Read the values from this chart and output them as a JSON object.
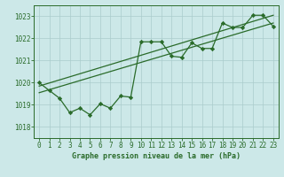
{
  "title": "Graphe pression niveau de la mer (hPa)",
  "bg_color": "#cce8e8",
  "grid_color": "#aacccc",
  "line_color": "#2a6b2a",
  "marker_color": "#2a6b2a",
  "xlim": [
    -0.5,
    23.5
  ],
  "ylim": [
    1017.5,
    1023.5
  ],
  "yticks": [
    1018,
    1019,
    1020,
    1021,
    1022,
    1023
  ],
  "xticks": [
    0,
    1,
    2,
    3,
    4,
    5,
    6,
    7,
    8,
    9,
    10,
    11,
    12,
    13,
    14,
    15,
    16,
    17,
    18,
    19,
    20,
    21,
    22,
    23
  ],
  "main_series_x": [
    0,
    1,
    2,
    3,
    4,
    5,
    6,
    7,
    8,
    9,
    10,
    11,
    12,
    13,
    14,
    15,
    16,
    17,
    18,
    19,
    20,
    21,
    22,
    23
  ],
  "main_series_y": [
    1020.0,
    1019.65,
    1019.3,
    1018.65,
    1018.85,
    1018.55,
    1019.05,
    1018.85,
    1019.4,
    1019.35,
    1021.85,
    1021.85,
    1021.85,
    1021.2,
    1021.15,
    1021.8,
    1021.55,
    1021.55,
    1022.7,
    1022.5,
    1022.5,
    1023.05,
    1023.05,
    1022.55
  ],
  "trend1_x": [
    0,
    23
  ],
  "trend1_y": [
    1019.55,
    1022.7
  ],
  "trend2_x": [
    0,
    23
  ],
  "trend2_y": [
    1019.85,
    1023.05
  ],
  "title_fontsize": 6.0,
  "tick_fontsize": 5.5,
  "figsize": [
    3.2,
    2.0
  ],
  "dpi": 100
}
